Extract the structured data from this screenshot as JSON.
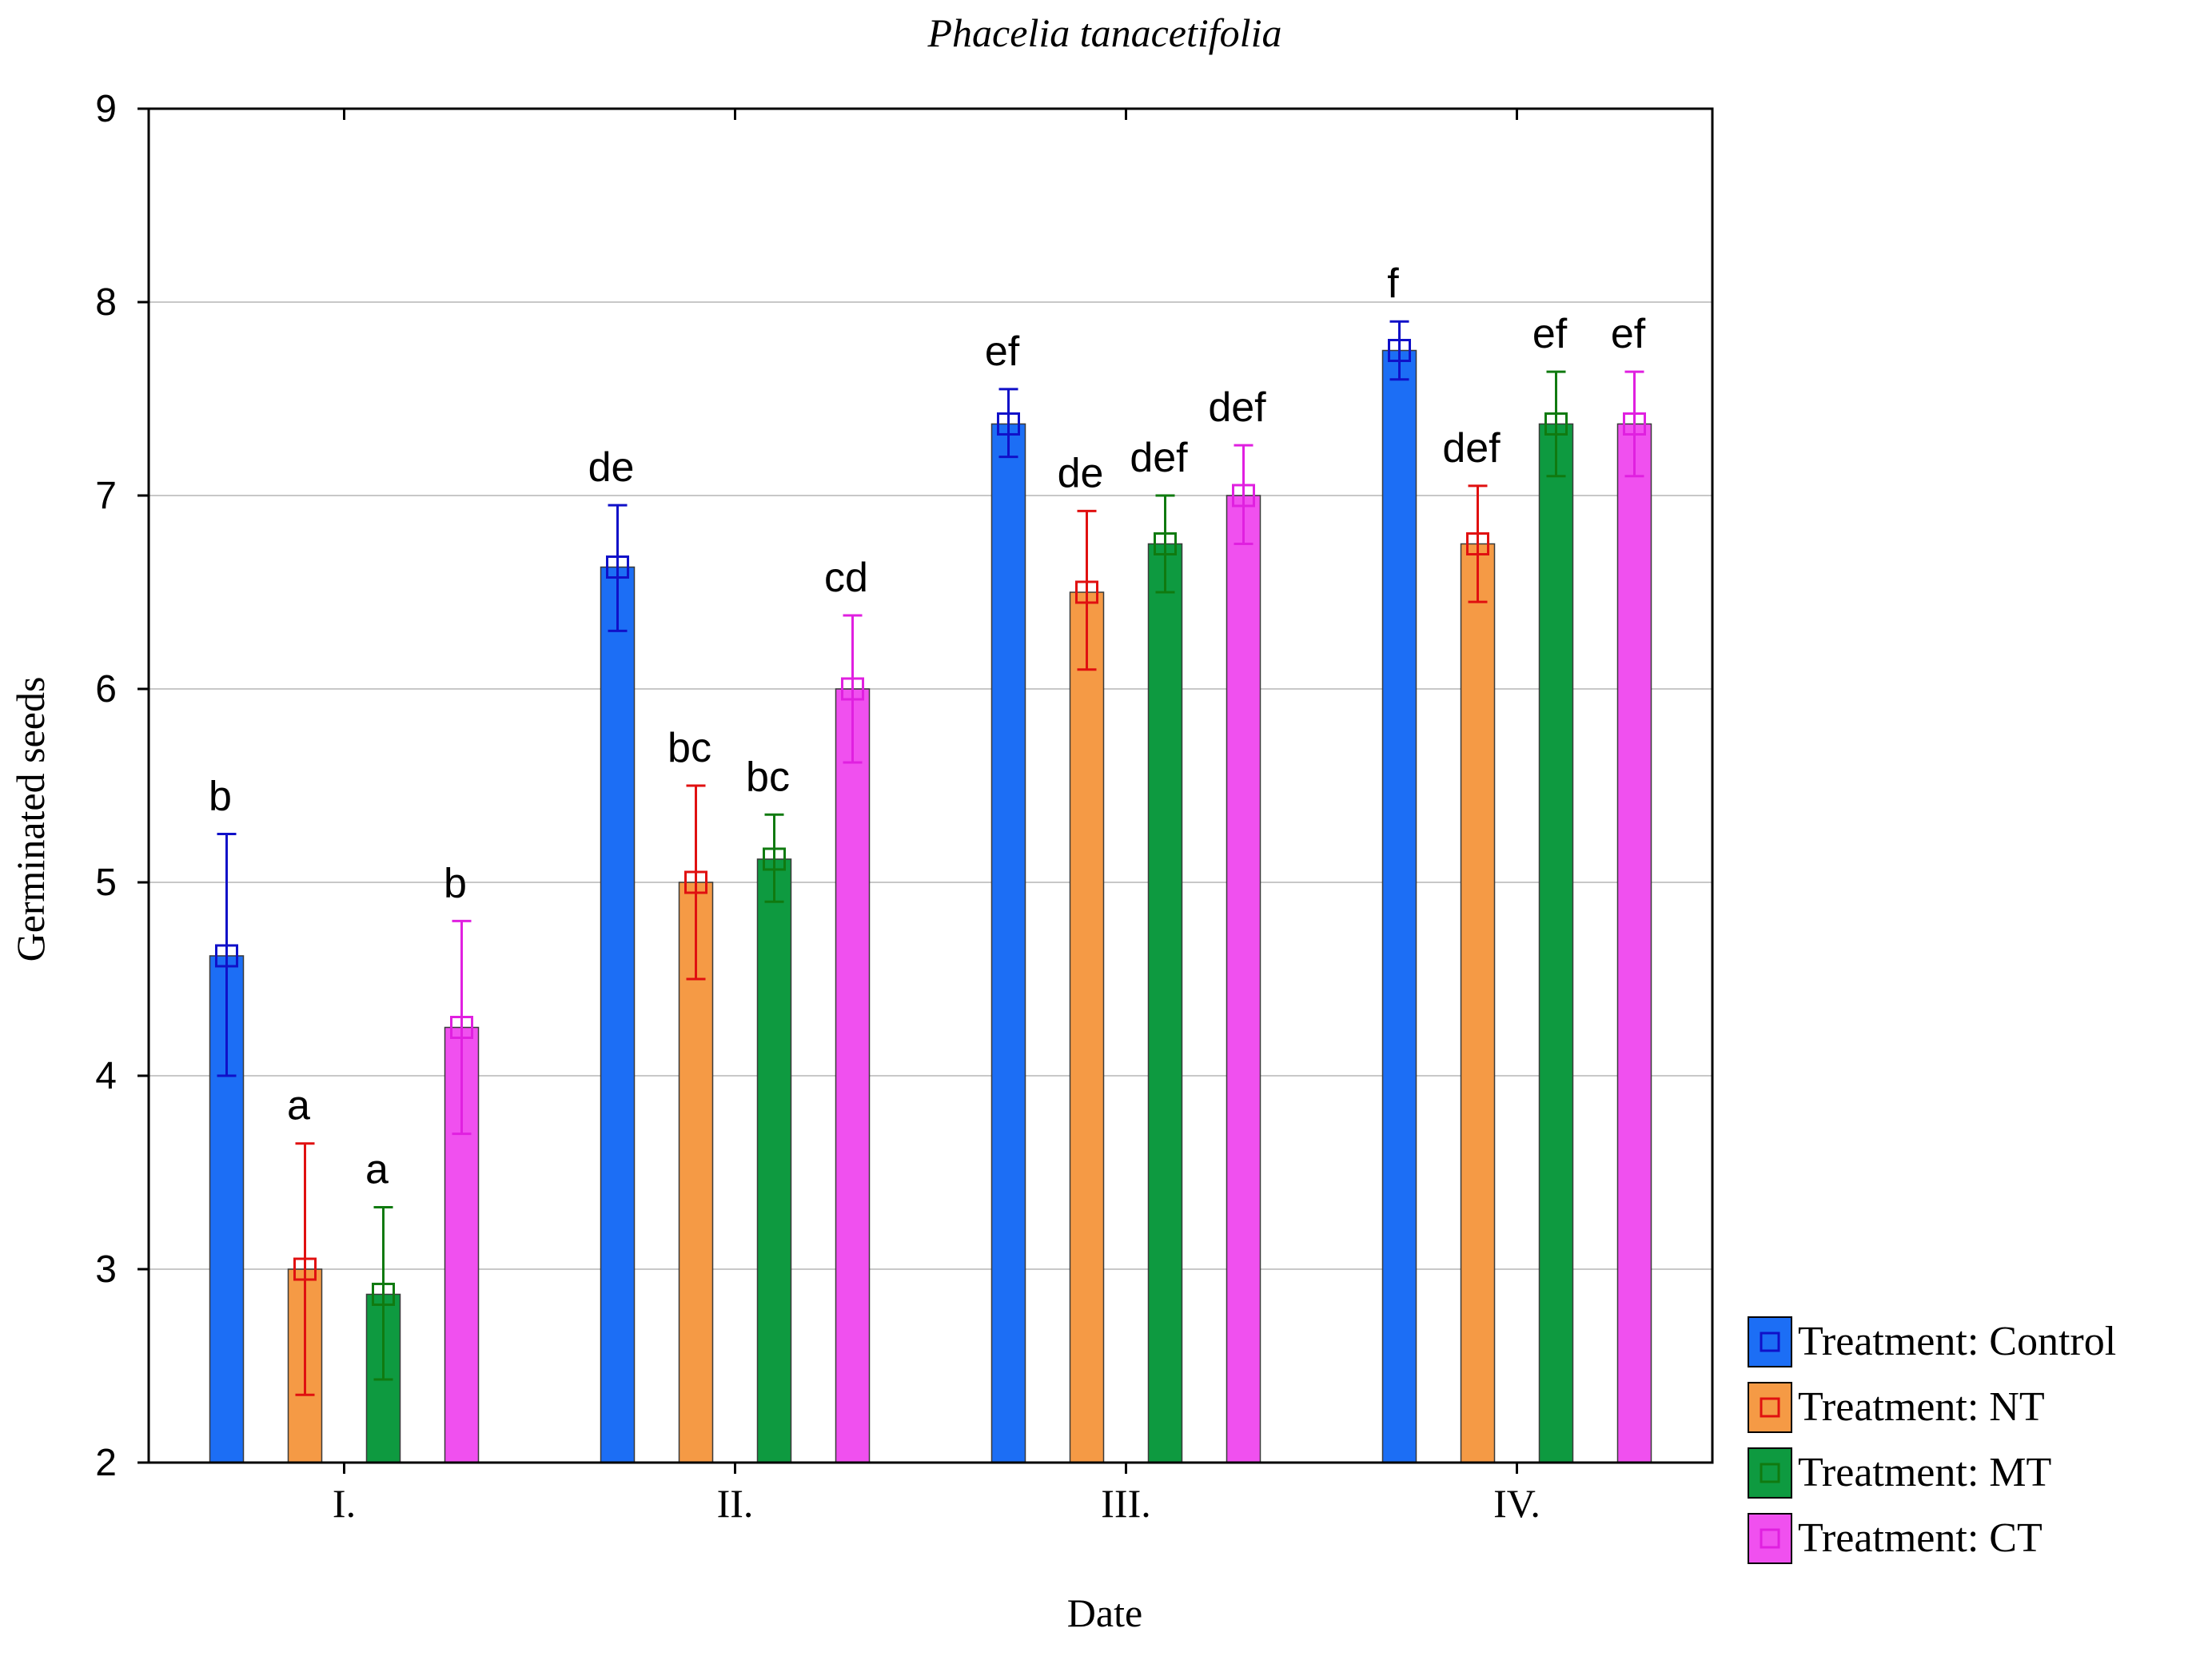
{
  "chart_data": {
    "type": "bar",
    "title": "Phacelia tanacetifolia",
    "xlabel": "Date",
    "ylabel": "Germinated seeds",
    "ylim": [
      2,
      9
    ],
    "yticks": [
      2,
      3,
      4,
      5,
      6,
      7,
      8,
      9
    ],
    "grid": true,
    "legend_position": "right-bottom",
    "categories": [
      "I.",
      "II.",
      "III.",
      "IV."
    ],
    "series": [
      {
        "name": "Treatment: Control",
        "color": "#1c6ef5",
        "values": [
          4.62,
          6.63,
          7.37,
          7.75
        ],
        "err_low": [
          4.0,
          6.3,
          7.2,
          7.6
        ],
        "err_high": [
          5.25,
          6.95,
          7.55,
          7.9
        ],
        "letters": [
          "b",
          "de",
          "ef",
          "f"
        ]
      },
      {
        "name": "Treatment: NT",
        "color": "#f59a45",
        "values": [
          3.0,
          5.0,
          6.5,
          6.75
        ],
        "err_low": [
          2.35,
          4.5,
          6.1,
          6.45
        ],
        "err_high": [
          3.65,
          5.5,
          6.92,
          7.05
        ],
        "letters": [
          "a",
          "bc",
          "de",
          "def"
        ]
      },
      {
        "name": "Treatment: MT",
        "color": "#0e9a40",
        "values": [
          2.87,
          5.12,
          6.75,
          7.37
        ],
        "err_low": [
          2.43,
          4.9,
          6.5,
          7.1
        ],
        "err_high": [
          3.32,
          5.35,
          7.0,
          7.64
        ],
        "letters": [
          "a",
          "bc",
          "def",
          "ef"
        ]
      },
      {
        "name": "Treatment: CT",
        "color": "#f050ef",
        "values": [
          4.25,
          6.0,
          7.0,
          7.37
        ],
        "err_low": [
          3.7,
          5.62,
          6.75,
          7.1
        ],
        "err_high": [
          4.8,
          6.38,
          7.26,
          7.64
        ],
        "letters": [
          "b",
          "cd",
          "def",
          "ef"
        ]
      }
    ],
    "error_colors": [
      "#1010c8",
      "#e01010",
      "#107a10",
      "#e020e0"
    ]
  }
}
